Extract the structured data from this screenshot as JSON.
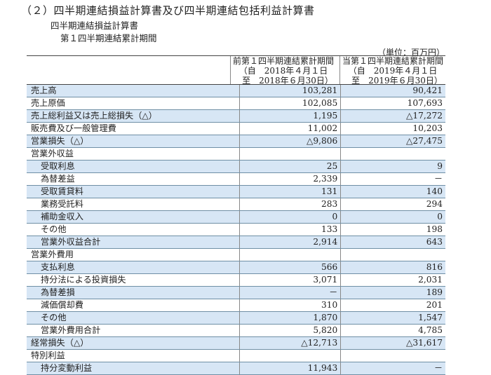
{
  "title": "（２）四半期連結損益計算書及び四半期連結包括利益計算書",
  "subtitle1": "四半期連結損益計算書",
  "subtitle2": "第１四半期連結累計期間",
  "unit": "（単位：百万円）",
  "columns": {
    "prev": [
      "前第１四半期連結累計期間",
      "（自　2018年４月１日",
      "　至　2018年６月30日）"
    ],
    "curr": [
      "当第１四半期連結累計期間",
      "（自　2019年４月１日",
      "　至　2019年６月30日）"
    ]
  },
  "rows": [
    {
      "label": "売上高",
      "prev": "103,281",
      "curr": "90,421",
      "indent": false,
      "hl": true
    },
    {
      "label": "売上原価",
      "prev": "102,085",
      "curr": "107,693",
      "indent": false,
      "hl": false
    },
    {
      "label": "売上総利益又は売上総損失（△）",
      "prev": "1,195",
      "curr": "△17,272",
      "indent": false,
      "hl": true
    },
    {
      "label": "販売費及び一般管理費",
      "prev": "11,002",
      "curr": "10,203",
      "indent": false,
      "hl": false
    },
    {
      "label": "営業損失（△）",
      "prev": "△9,806",
      "curr": "△27,475",
      "indent": false,
      "hl": true
    },
    {
      "label": "営業外収益",
      "prev": "",
      "curr": "",
      "indent": false,
      "hl": false
    },
    {
      "label": "受取利息",
      "prev": "25",
      "curr": "9",
      "indent": true,
      "hl": true
    },
    {
      "label": "為替差益",
      "prev": "2,339",
      "curr": "－",
      "indent": true,
      "hl": false
    },
    {
      "label": "受取賃貸料",
      "prev": "131",
      "curr": "140",
      "indent": true,
      "hl": true
    },
    {
      "label": "業務受託料",
      "prev": "283",
      "curr": "294",
      "indent": true,
      "hl": false
    },
    {
      "label": "補助金収入",
      "prev": "0",
      "curr": "0",
      "indent": true,
      "hl": true
    },
    {
      "label": "その他",
      "prev": "133",
      "curr": "198",
      "indent": true,
      "hl": false
    },
    {
      "label": "営業外収益合計",
      "prev": "2,914",
      "curr": "643",
      "indent": true,
      "hl": true
    },
    {
      "label": "営業外費用",
      "prev": "",
      "curr": "",
      "indent": false,
      "hl": false
    },
    {
      "label": "支払利息",
      "prev": "566",
      "curr": "816",
      "indent": true,
      "hl": true
    },
    {
      "label": "持分法による投資損失",
      "prev": "3,071",
      "curr": "2,031",
      "indent": true,
      "hl": false
    },
    {
      "label": "為替差損",
      "prev": "－",
      "curr": "189",
      "indent": true,
      "hl": true
    },
    {
      "label": "減価償却費",
      "prev": "310",
      "curr": "201",
      "indent": true,
      "hl": false
    },
    {
      "label": "その他",
      "prev": "1,870",
      "curr": "1,547",
      "indent": true,
      "hl": true
    },
    {
      "label": "営業外費用合計",
      "prev": "5,820",
      "curr": "4,785",
      "indent": true,
      "hl": false
    },
    {
      "label": "経常損失（△）",
      "prev": "△12,713",
      "curr": "△31,617",
      "indent": false,
      "hl": true
    },
    {
      "label": "特別利益",
      "prev": "",
      "curr": "",
      "indent": false,
      "hl": false
    },
    {
      "label": "持分変動利益",
      "prev": "11,943",
      "curr": "－",
      "indent": true,
      "hl": true
    }
  ]
}
